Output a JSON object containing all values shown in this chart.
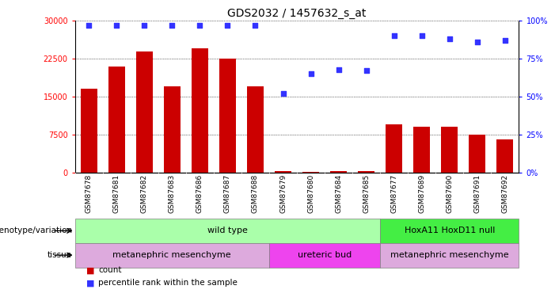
{
  "title": "GDS2032 / 1457632_s_at",
  "samples": [
    "GSM87678",
    "GSM87681",
    "GSM87682",
    "GSM87683",
    "GSM87686",
    "GSM87687",
    "GSM87688",
    "GSM87679",
    "GSM87680",
    "GSM87684",
    "GSM87685",
    "GSM87677",
    "GSM87689",
    "GSM87690",
    "GSM87691",
    "GSM87692"
  ],
  "counts": [
    16500,
    21000,
    24000,
    17000,
    24500,
    22500,
    17000,
    300,
    200,
    300,
    300,
    9500,
    9000,
    9000,
    7500,
    6500
  ],
  "percentile": [
    97,
    97,
    97,
    97,
    97,
    97,
    97,
    52,
    65,
    68,
    67,
    90,
    90,
    88,
    86,
    87
  ],
  "ylim_left": [
    0,
    30000
  ],
  "ylim_right": [
    0,
    100
  ],
  "yticks_left": [
    0,
    7500,
    15000,
    22500,
    30000
  ],
  "yticks_right": [
    0,
    25,
    50,
    75,
    100
  ],
  "bar_color": "#cc0000",
  "dot_color": "#3333ff",
  "background_color": "#ffffff",
  "genotype_groups": [
    {
      "label": "wild type",
      "start": 0,
      "end": 10,
      "color": "#aaffaa"
    },
    {
      "label": "HoxA11 HoxD11 null",
      "start": 11,
      "end": 15,
      "color": "#44ee44"
    }
  ],
  "tissue_groups": [
    {
      "label": "metanephric mesenchyme",
      "start": 0,
      "end": 6,
      "color": "#ddaadd"
    },
    {
      "label": "ureteric bud",
      "start": 7,
      "end": 10,
      "color": "#ee44ee"
    },
    {
      "label": "metanephric mesenchyme",
      "start": 11,
      "end": 15,
      "color": "#ddaadd"
    }
  ],
  "legend_items": [
    {
      "label": "count",
      "color": "#cc0000"
    },
    {
      "label": "percentile rank within the sample",
      "color": "#3333ff"
    }
  ],
  "xtick_bg": "#cccccc"
}
